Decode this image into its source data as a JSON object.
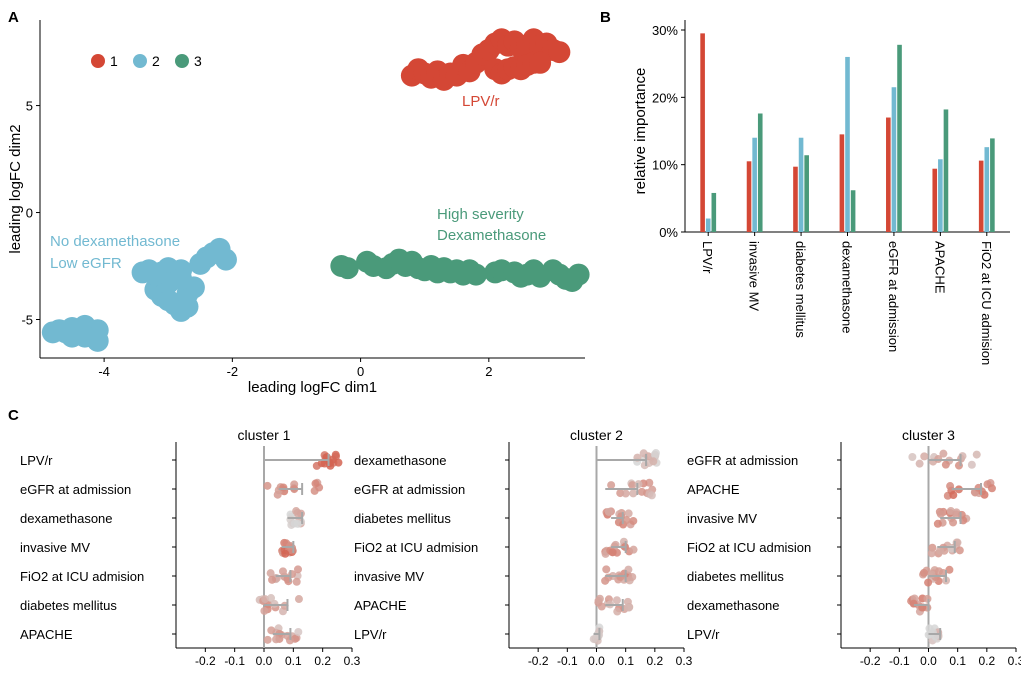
{
  "colors": {
    "c1": "#d44735",
    "c2": "#72b9d1",
    "c3": "#4a9a7a",
    "axis": "#000000",
    "ref": "#a8a8a8",
    "lowdot": "#d4d4d4",
    "highdot": "#e08070"
  },
  "chart_data": [
    {
      "panel": "A",
      "type": "scatter",
      "xlabel": "leading logFC dim1",
      "ylabel": "leading logFC dim2",
      "xlim": [
        -5.0,
        3.5
      ],
      "ylim": [
        -6.8,
        9.0
      ],
      "xticks": [
        "-4",
        "-2",
        "0",
        "2"
      ],
      "xtick_values": [
        -4,
        -2,
        0,
        2
      ],
      "yticks": [
        "-5",
        "0",
        "5"
      ],
      "ytick_values": [
        -5,
        0,
        5
      ],
      "legend": {
        "placement": "top-left",
        "entries": [
          "1",
          "2",
          "3"
        ]
      },
      "annotations": [
        {
          "text": "LPV/r",
          "series": "1"
        },
        {
          "text": "High severity",
          "series": "3"
        },
        {
          "text": "Dexamethasone",
          "series": "3"
        },
        {
          "text": "No dexamethasone",
          "series": "2"
        },
        {
          "text": "Low eGFR",
          "series": "2"
        }
      ],
      "series": [
        {
          "name": "1",
          "points": [
            [
              0.8,
              6.4
            ],
            [
              0.9,
              6.7
            ],
            [
              1.0,
              6.5
            ],
            [
              1.1,
              6.3
            ],
            [
              1.2,
              6.6
            ],
            [
              1.3,
              6.2
            ],
            [
              1.4,
              6.5
            ],
            [
              1.5,
              6.4
            ],
            [
              1.6,
              6.9
            ],
            [
              1.7,
              6.6
            ],
            [
              1.8,
              7.0
            ],
            [
              1.9,
              7.4
            ],
            [
              2.0,
              7.6
            ],
            [
              2.1,
              7.9
            ],
            [
              2.2,
              8.1
            ],
            [
              2.3,
              7.8
            ],
            [
              2.4,
              8.0
            ],
            [
              2.5,
              7.7
            ],
            [
              2.6,
              7.8
            ],
            [
              2.7,
              8.1
            ],
            [
              2.8,
              7.8
            ],
            [
              2.9,
              7.9
            ],
            [
              3.0,
              7.6
            ],
            [
              3.1,
              7.5
            ],
            [
              2.1,
              6.7
            ],
            [
              2.2,
              6.5
            ],
            [
              2.3,
              6.7
            ],
            [
              2.4,
              6.8
            ],
            [
              2.5,
              6.7
            ],
            [
              2.6,
              6.9
            ],
            [
              2.7,
              7.0
            ],
            [
              2.8,
              7.0
            ]
          ]
        },
        {
          "name": "2",
          "points": [
            [
              -4.8,
              -5.6
            ],
            [
              -4.7,
              -5.5
            ],
            [
              -4.6,
              -5.6
            ],
            [
              -4.5,
              -5.4
            ],
            [
              -4.4,
              -5.5
            ],
            [
              -4.3,
              -5.3
            ],
            [
              -4.2,
              -5.6
            ],
            [
              -4.1,
              -5.5
            ],
            [
              -4.3,
              -5.8
            ],
            [
              -4.1,
              -6.0
            ],
            [
              -4.5,
              -5.8
            ],
            [
              -3.4,
              -2.8
            ],
            [
              -3.3,
              -2.7
            ],
            [
              -3.1,
              -2.8
            ],
            [
              -3.0,
              -2.6
            ],
            [
              -2.9,
              -2.8
            ],
            [
              -2.8,
              -2.7
            ],
            [
              -3.2,
              -3.6
            ],
            [
              -3.1,
              -3.9
            ],
            [
              -3.0,
              -4.1
            ],
            [
              -2.9,
              -4.3
            ],
            [
              -2.8,
              -4.6
            ],
            [
              -2.7,
              -4.4
            ],
            [
              -2.7,
              -3.8
            ],
            [
              -2.6,
              -3.5
            ],
            [
              -2.5,
              -2.4
            ],
            [
              -2.4,
              -2.1
            ],
            [
              -2.3,
              -1.9
            ],
            [
              -2.1,
              -2.2
            ],
            [
              -2.2,
              -1.7
            ],
            [
              -2.8,
              -3.1
            ],
            [
              -3.0,
              -3.3
            ],
            [
              -3.2,
              -2.9
            ]
          ]
        },
        {
          "name": "3",
          "points": [
            [
              -0.3,
              -2.5
            ],
            [
              -0.2,
              -2.6
            ],
            [
              0.1,
              -2.3
            ],
            [
              0.2,
              -2.5
            ],
            [
              0.4,
              -2.6
            ],
            [
              0.5,
              -2.4
            ],
            [
              0.6,
              -2.2
            ],
            [
              0.7,
              -2.5
            ],
            [
              0.8,
              -2.3
            ],
            [
              0.9,
              -2.6
            ],
            [
              1.0,
              -2.7
            ],
            [
              1.1,
              -2.5
            ],
            [
              1.2,
              -2.8
            ],
            [
              1.3,
              -2.6
            ],
            [
              1.4,
              -2.8
            ],
            [
              1.5,
              -2.7
            ],
            [
              1.6,
              -2.9
            ],
            [
              1.7,
              -2.7
            ],
            [
              1.8,
              -2.9
            ],
            [
              2.1,
              -2.8
            ],
            [
              2.2,
              -2.7
            ],
            [
              2.4,
              -2.8
            ],
            [
              2.5,
              -3.0
            ],
            [
              2.6,
              -2.9
            ],
            [
              2.7,
              -2.7
            ],
            [
              2.8,
              -3.0
            ],
            [
              3.0,
              -2.7
            ],
            [
              3.1,
              -2.9
            ],
            [
              3.2,
              -3.1
            ],
            [
              3.3,
              -3.2
            ],
            [
              3.4,
              -2.9
            ]
          ]
        }
      ]
    },
    {
      "panel": "B",
      "type": "bar",
      "ylabel": "relative importance",
      "ylim": [
        0,
        30
      ],
      "yticks": [
        "0%",
        "10%",
        "20%",
        "30%"
      ],
      "ytick_values": [
        0,
        10,
        20,
        30
      ],
      "categories": [
        "LPV/r",
        "invasive MV",
        "diabetes mellitus",
        "dexamethasone",
        "eGFR at admission",
        "APACHE",
        "FiO2 at ICU admision"
      ],
      "series": [
        {
          "name": "1",
          "values": [
            29.5,
            10.5,
            9.7,
            14.5,
            17.0,
            9.4,
            10.6
          ]
        },
        {
          "name": "2",
          "values": [
            2.0,
            14.0,
            14.0,
            26.0,
            21.5,
            10.8,
            12.6
          ]
        },
        {
          "name": "3",
          "values": [
            5.8,
            17.6,
            11.4,
            6.2,
            27.8,
            18.2,
            13.9
          ]
        }
      ]
    },
    {
      "panel": "C",
      "type": "scatter",
      "xlim": [
        -0.3,
        0.3
      ],
      "xticks": [
        "-0.2",
        "-0.1",
        "0.0",
        "0.1",
        "0.2",
        "0.3"
      ],
      "xtick_values": [
        -0.2,
        -0.1,
        0.0,
        0.1,
        0.2,
        0.3
      ],
      "facets": [
        {
          "title": "cluster 1",
          "rows": [
            {
              "label": "LPV/r",
              "mean": 0.22,
              "ci": [
                0.0,
                0.22
              ],
              "jitter": 0.04,
              "imp": 0.95
            },
            {
              "label": "eGFR at admission",
              "mean": 0.1,
              "ci": [
                0.05,
                0.13
              ],
              "jitter": 0.1,
              "imp": 0.55
            },
            {
              "label": "dexamethasone",
              "mean": 0.11,
              "ci": [
                0.08,
                0.13
              ],
              "jitter": 0.02,
              "imp": 0.2
            },
            {
              "label": "invasive MV",
              "mean": 0.08,
              "ci": [
                0.06,
                0.1
              ],
              "jitter": 0.02,
              "imp": 0.75
            },
            {
              "label": "FiO2 at ICU admision",
              "mean": 0.07,
              "ci": [
                0.04,
                0.09
              ],
              "jitter": 0.05,
              "imp": 0.4
            },
            {
              "label": "diabetes mellitus",
              "mean": 0.05,
              "ci": [
                0.0,
                0.08
              ],
              "jitter": 0.07,
              "imp": 0.45
            },
            {
              "label": "APACHE",
              "mean": 0.06,
              "ci": [
                0.03,
                0.09
              ],
              "jitter": 0.06,
              "imp": 0.35
            }
          ]
        },
        {
          "title": "cluster 2",
          "rows": [
            {
              "label": "dexamethasone",
              "mean": 0.17,
              "ci": [
                0.0,
                0.17
              ],
              "jitter": 0.04,
              "imp": 0.2
            },
            {
              "label": "eGFR at admission",
              "mean": 0.1,
              "ci": [
                0.03,
                0.14
              ],
              "jitter": 0.1,
              "imp": 0.45
            },
            {
              "label": "diabetes mellitus",
              "mean": 0.08,
              "ci": [
                0.05,
                0.09
              ],
              "jitter": 0.05,
              "imp": 0.6
            },
            {
              "label": "FiO2 at ICU admision",
              "mean": 0.08,
              "ci": [
                0.05,
                0.1
              ],
              "jitter": 0.05,
              "imp": 0.55
            },
            {
              "label": "invasive MV",
              "mean": 0.07,
              "ci": [
                0.03,
                0.1
              ],
              "jitter": 0.06,
              "imp": 0.5
            },
            {
              "label": "APACHE",
              "mean": 0.06,
              "ci": [
                0.03,
                0.09
              ],
              "jitter": 0.07,
              "imp": 0.45
            },
            {
              "label": "LPV/r",
              "mean": 0.0,
              "ci": [
                -0.01,
                0.01
              ],
              "jitter": 0.01,
              "imp": 0.05
            }
          ]
        },
        {
          "title": "cluster 3",
          "rows": [
            {
              "label": "eGFR at admission",
              "mean": 0.07,
              "ci": [
                0.0,
                0.11
              ],
              "jitter": 0.14,
              "imp": 0.4
            },
            {
              "label": "APACHE",
              "mean": 0.14,
              "ci": [
                0.08,
                0.18
              ],
              "jitter": 0.08,
              "imp": 0.7
            },
            {
              "label": "invasive MV",
              "mean": 0.08,
              "ci": [
                0.04,
                0.11
              ],
              "jitter": 0.05,
              "imp": 0.6
            },
            {
              "label": "FiO2 at ICU admision",
              "mean": 0.06,
              "ci": [
                0.03,
                0.09
              ],
              "jitter": 0.05,
              "imp": 0.35
            },
            {
              "label": "diabetes mellitus",
              "mean": 0.03,
              "ci": [
                0.0,
                0.06
              ],
              "jitter": 0.05,
              "imp": 0.55
            },
            {
              "label": "dexamethasone",
              "mean": -0.03,
              "ci": [
                -0.05,
                0.0
              ],
              "jitter": 0.03,
              "imp": 0.6
            },
            {
              "label": "LPV/r",
              "mean": 0.02,
              "ci": [
                0.0,
                0.04
              ],
              "jitter": 0.02,
              "imp": 0.1
            }
          ]
        }
      ]
    }
  ],
  "panel_labels": {
    "a": "A",
    "b": "B",
    "c": "C"
  }
}
